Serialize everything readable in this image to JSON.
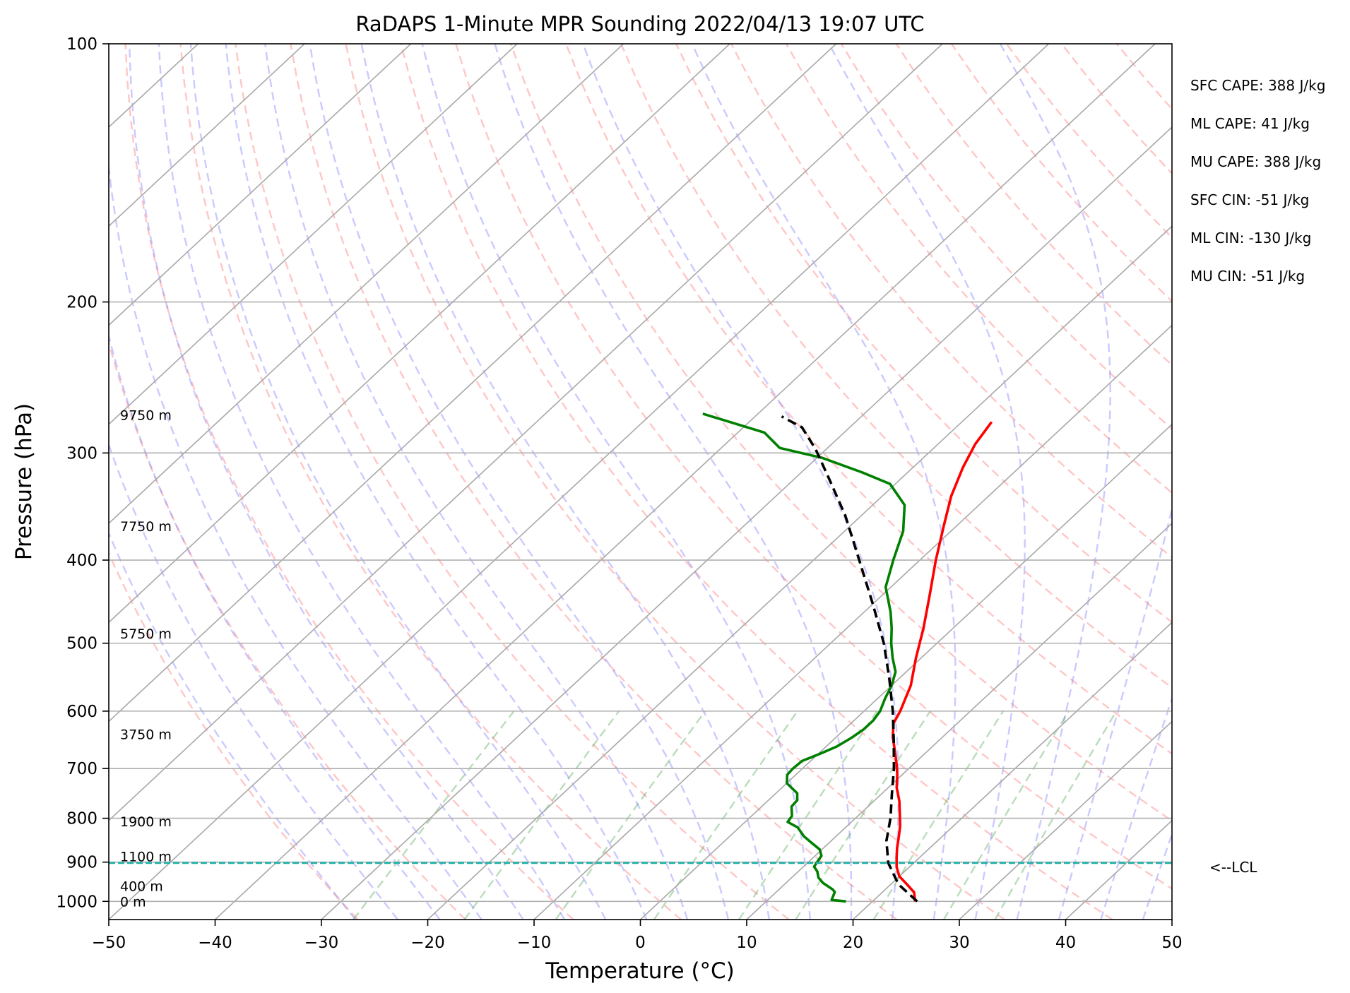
{
  "chart_data": {
    "type": "line",
    "title": "RaDAPS 1-Minute MPR Sounding 2022/04/13 19:07 UTC",
    "xlabel": "Temperature (°C)",
    "ylabel": "Pressure (hPa)",
    "xlim": [
      -50,
      50
    ],
    "ylim": [
      1050,
      100
    ],
    "y_scale": "log",
    "skew": "skew-T log-P",
    "grid": true,
    "x_ticks": [
      "−50",
      "−40",
      "−30",
      "−20",
      "−10",
      "0",
      "10",
      "20",
      "30",
      "40",
      "50"
    ],
    "x_tick_values": [
      -50,
      -40,
      -30,
      -20,
      -10,
      0,
      10,
      20,
      30,
      40,
      50
    ],
    "y_ticks": [
      "100",
      "200",
      "300",
      "400",
      "500",
      "600",
      "700",
      "800",
      "900",
      "1000"
    ],
    "y_tick_values": [
      100,
      200,
      300,
      400,
      500,
      600,
      700,
      800,
      900,
      1000
    ],
    "height_labels": [
      {
        "text": "9750 m",
        "p": 271
      },
      {
        "text": "7750 m",
        "p": 365
      },
      {
        "text": "5750 m",
        "p": 487
      },
      {
        "text": "3750 m",
        "p": 638
      },
      {
        "text": "1900 m",
        "p": 807
      },
      {
        "text": "1100 m",
        "p": 886
      },
      {
        "text": "400 m",
        "p": 960
      },
      {
        "text": "0 m",
        "p": 1000
      }
    ],
    "stats": [
      "SFC CAPE: 388 J/kg",
      "ML CAPE: 41 J/kg",
      "MU CAPE: 388 J/kg",
      "SFC CIN: -51 J/kg",
      "ML CIN: -130 J/kg",
      "MU CIN: -51 J/kg"
    ],
    "lcl": {
      "label": "<--LCL",
      "p": 902
    },
    "series": [
      {
        "key": "temperature",
        "color": "#ff0000",
        "points": [
          [
            24.0,
            1000
          ],
          [
            23.0,
            976
          ],
          [
            21.5,
            955
          ],
          [
            20.0,
            935
          ],
          [
            18.8,
            912
          ],
          [
            17.8,
            888
          ],
          [
            16.9,
            866
          ],
          [
            16.0,
            842
          ],
          [
            15.0,
            817
          ],
          [
            13.7,
            790
          ],
          [
            12.4,
            764
          ],
          [
            10.8,
            737
          ],
          [
            9.5,
            711
          ],
          [
            8.3,
            690
          ],
          [
            6.8,
            666
          ],
          [
            5.3,
            643
          ],
          [
            4.0,
            620
          ],
          [
            3.4,
            600
          ],
          [
            1.8,
            560
          ],
          [
            -0.5,
            520
          ],
          [
            -2.8,
            480
          ],
          [
            -5.5,
            440
          ],
          [
            -8.5,
            400
          ],
          [
            -11.2,
            365
          ],
          [
            -13.5,
            337
          ],
          [
            -15.3,
            312
          ],
          [
            -16.5,
            293
          ],
          [
            -17.2,
            276
          ]
        ]
      },
      {
        "key": "dewpoint",
        "color": "#008000",
        "points": [
          [
            17.5,
            1000
          ],
          [
            16.0,
            996
          ],
          [
            15.5,
            975
          ],
          [
            15.0,
            968
          ],
          [
            13.5,
            952
          ],
          [
            12.5,
            938
          ],
          [
            11.8,
            923
          ],
          [
            11.0,
            911
          ],
          [
            10.8,
            898
          ],
          [
            10.6,
            885
          ],
          [
            9.8,
            870
          ],
          [
            8.5,
            856
          ],
          [
            7.0,
            840
          ],
          [
            5.5,
            820
          ],
          [
            4.0,
            808
          ],
          [
            3.8,
            795
          ],
          [
            2.8,
            775
          ],
          [
            2.7,
            762
          ],
          [
            2.0,
            748
          ],
          [
            0.0,
            728
          ],
          [
            -0.8,
            712
          ],
          [
            -0.9,
            700
          ],
          [
            -0.8,
            686
          ],
          [
            0.2,
            672
          ],
          [
            1.0,
            660
          ],
          [
            1.5,
            645
          ],
          [
            1.8,
            630
          ],
          [
            1.8,
            615
          ],
          [
            1.5,
            600
          ],
          [
            0.7,
            580
          ],
          [
            0.0,
            560
          ],
          [
            -1.0,
            540
          ],
          [
            -2.7,
            520
          ],
          [
            -4.3,
            500
          ],
          [
            -5.8,
            480
          ],
          [
            -7.5,
            460
          ],
          [
            -10.5,
            430
          ],
          [
            -12.5,
            400
          ],
          [
            -14.5,
            370
          ],
          [
            -17.0,
            345
          ],
          [
            -20.5,
            326
          ],
          [
            -24.3,
            316
          ],
          [
            -29.5,
            304
          ],
          [
            -34.5,
            296
          ],
          [
            -37.5,
            284
          ],
          [
            -45.2,
            270
          ]
        ]
      },
      {
        "key": "parcel",
        "color": "#000000",
        "dashed": true,
        "points": [
          [
            24.2,
            1000
          ],
          [
            20.7,
            955
          ],
          [
            17.6,
            902
          ],
          [
            15.2,
            850
          ],
          [
            13.3,
            800
          ],
          [
            11.0,
            750
          ],
          [
            8.6,
            700
          ],
          [
            5.8,
            650
          ],
          [
            2.7,
            600
          ],
          [
            -0.9,
            550
          ],
          [
            -5.0,
            500
          ],
          [
            -10.0,
            450
          ],
          [
            -15.7,
            400
          ],
          [
            -21.5,
            355
          ],
          [
            -27.0,
            320
          ],
          [
            -31.0,
            297
          ],
          [
            -34.5,
            280
          ],
          [
            -37.5,
            272
          ]
        ]
      }
    ]
  }
}
